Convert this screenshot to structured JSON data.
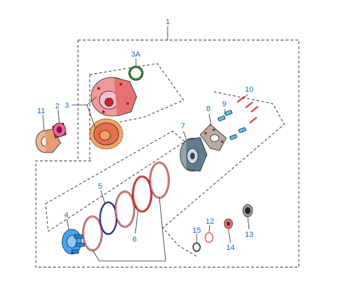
{
  "diagram": {
    "callouts": {
      "c1": "1",
      "c2": "2",
      "c3": "3",
      "c3a": "3A",
      "c4": "4",
      "c5": "5",
      "c6": "6",
      "c7": "7",
      "c8": "8",
      "c9": "9",
      "c10": "10",
      "c11": "11",
      "c12": "12",
      "c13": "13",
      "c14": "14",
      "c15": "15"
    },
    "part_colors": {
      "pump_housing": "#ef9a9a",
      "drive_gear": "#f4a261",
      "seal_ring": "#2e7d32",
      "bushing": "#e91e63",
      "washer": "#f5b48c",
      "piston": "#42a5f5",
      "snap_ring": "#283593",
      "friction_plate": "#e53935",
      "clutch_hub": "#78909c",
      "retainer": "#bcaaa4",
      "springs": "#4fc3f7",
      "bolts": "#e53935",
      "small_parts": "#e57373"
    }
  }
}
